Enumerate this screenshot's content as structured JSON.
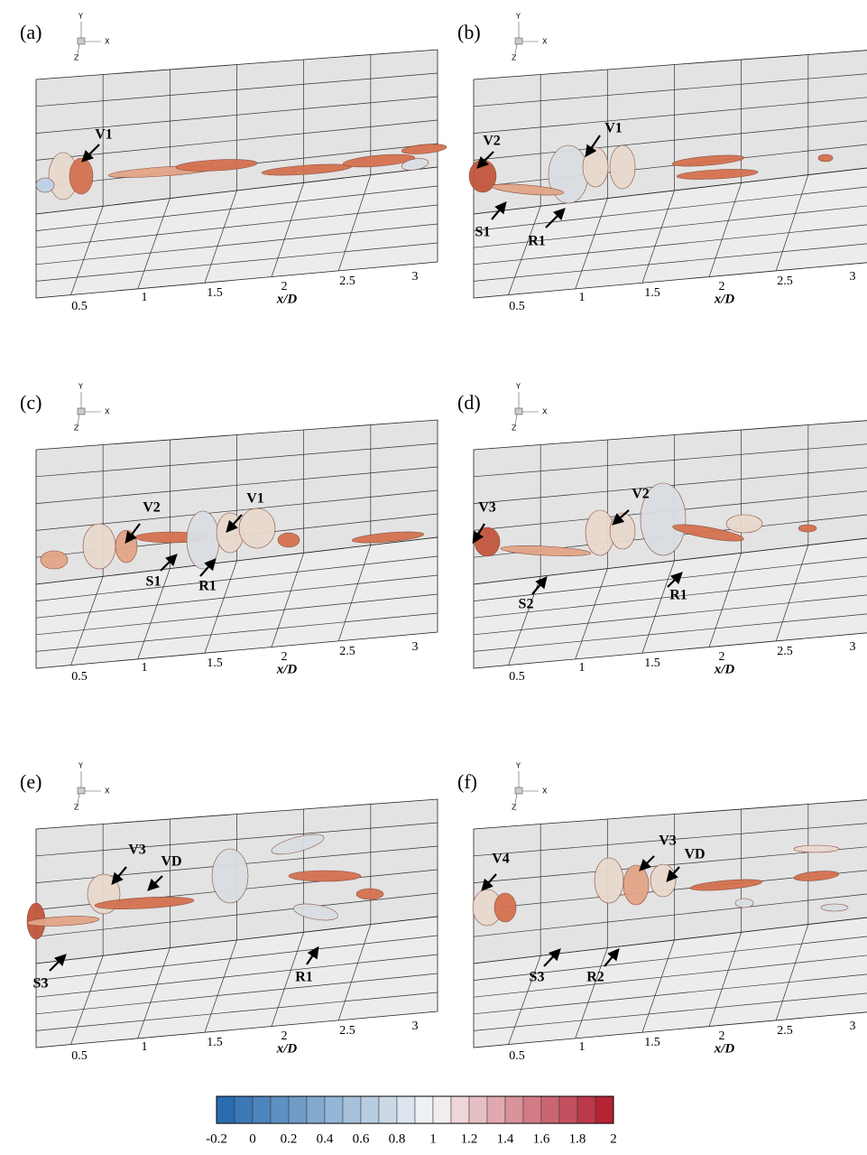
{
  "panels": [
    {
      "label": "(a)",
      "triad": {
        "y": "Y",
        "x": "X",
        "z": "Z"
      },
      "xticks": [
        0.5,
        1,
        1.5,
        2,
        2.5,
        3
      ],
      "xlabel": "x/D",
      "annotations": [
        "V1"
      ]
    },
    {
      "label": "(b)",
      "triad": {
        "y": "Y",
        "x": "X",
        "z": "Z"
      },
      "xticks": [
        0.5,
        1,
        1.5,
        2,
        2.5,
        3
      ],
      "xlabel": "x/D",
      "annotations": [
        "V2",
        "V1",
        "S1",
        "R1"
      ]
    },
    {
      "label": "(c)",
      "triad": {
        "y": "Y",
        "x": "X",
        "z": "Z"
      },
      "xticks": [
        0.5,
        1,
        1.5,
        2,
        2.5,
        3
      ],
      "xlabel": "x/D",
      "annotations": [
        "V2",
        "V1",
        "S1",
        "R1"
      ]
    },
    {
      "label": "(d)",
      "triad": {
        "y": "Y",
        "x": "X",
        "z": "Z"
      },
      "xticks": [
        0.5,
        1,
        1.5,
        2,
        2.5,
        3
      ],
      "xlabel": "x/D",
      "annotations": [
        "V3",
        "V2",
        "S2",
        "R1"
      ]
    },
    {
      "label": "(e)",
      "triad": {
        "y": "Y",
        "x": "X",
        "z": "Z"
      },
      "xticks": [
        0.5,
        1,
        1.5,
        2,
        2.5,
        3
      ],
      "xlabel": "x/D",
      "annotations": [
        "V3",
        "VD",
        "S3",
        "R1"
      ]
    },
    {
      "label": "(f)",
      "triad": {
        "y": "Y",
        "x": "X",
        "z": "Z"
      },
      "xticks": [
        0.5,
        1,
        1.5,
        2,
        2.5,
        3
      ],
      "xlabel": "x/D",
      "annotations": [
        "V4",
        "V3",
        "VD",
        "S3",
        "R2"
      ]
    }
  ],
  "colorbar": {
    "ticks": [
      -0.2,
      0,
      0.2,
      0.4,
      0.6,
      0.8,
      1,
      1.2,
      1.4,
      1.6,
      1.8,
      2
    ]
  }
}
